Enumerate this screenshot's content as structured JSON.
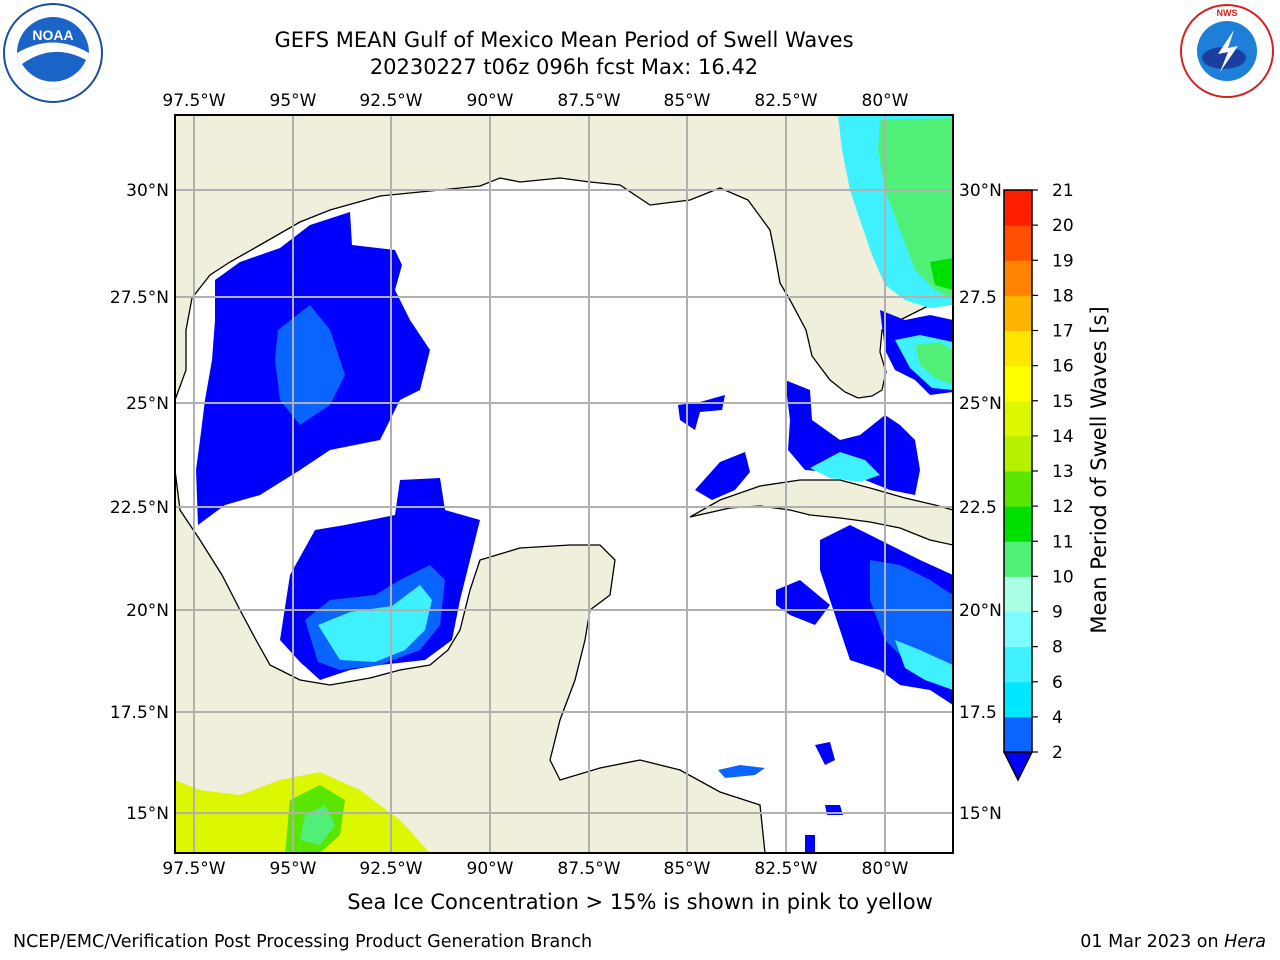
{
  "header": {
    "title_line1": "GEFS MEAN Gulf of Mexico Mean Period of Swell Waves",
    "title_line2": "20230227 t06z 096h fcst   Max: 16.42"
  },
  "logos": {
    "left": "NOAA",
    "right": "NATIONAL WEATHER SERVICE"
  },
  "map": {
    "lon_labels": [
      "97.5°W",
      "95°W",
      "92.5°W",
      "90°W",
      "87.5°W",
      "85°W",
      "82.5°W",
      "80°W"
    ],
    "lat_labels_left": [
      "30°N",
      "27.5°N",
      "25°N",
      "22.5°N",
      "20°N",
      "17.5°N",
      "15°N"
    ],
    "lat_labels_right": [
      "30°N",
      "27.5",
      "25°N",
      "22.5",
      "20°N",
      "17.5",
      "15°N"
    ],
    "land_color": "#efefdc",
    "grid_color": "#b0b0b0"
  },
  "colorbar": {
    "label": "Mean Period of Swell Waves [s]",
    "ticks": [
      "2",
      "4",
      "6",
      "8",
      "9",
      "10",
      "11",
      "12",
      "13",
      "14",
      "15",
      "16",
      "17",
      "18",
      "19",
      "20",
      "21"
    ],
    "colors": [
      "#0a64ff",
      "#00e8ff",
      "#3ff0ff",
      "#7ffcff",
      "#a8ffe4",
      "#50f078",
      "#00e000",
      "#5ae600",
      "#b4f000",
      "#dcf800",
      "#ffff00",
      "#ffe600",
      "#ffb400",
      "#ff8200",
      "#ff5000",
      "#ff1e00"
    ],
    "under_color": "#0000ff"
  },
  "footer": {
    "note": "Sea Ice Concentration > 15% is shown in pink to yellow",
    "credit_left": "NCEP/EMC/Verification Post Processing Product Generation Branch",
    "credit_right_date": "01 Mar 2023 on ",
    "credit_right_host": "Hera"
  }
}
